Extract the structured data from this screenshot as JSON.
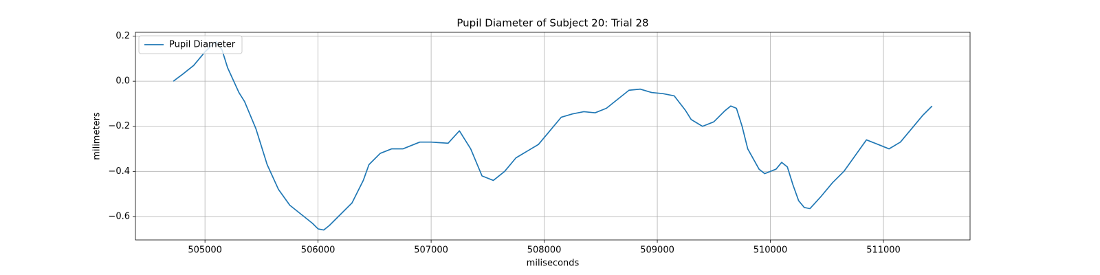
{
  "chart_data": {
    "type": "line",
    "title": "Pupil Diameter of Subject 20: Trial 28",
    "x_label": "miliseconds",
    "y_label": "milimeters",
    "x": [
      504720,
      504800,
      504900,
      505000,
      505050,
      505100,
      505150,
      505200,
      505300,
      505350,
      505450,
      505550,
      505650,
      505750,
      505850,
      505950,
      506000,
      506050,
      506100,
      506200,
      506300,
      506400,
      506450,
      506550,
      506650,
      506750,
      506850,
      506900,
      507000,
      507150,
      507250,
      507350,
      507450,
      507550,
      507650,
      507750,
      507850,
      507950,
      508050,
      508150,
      508250,
      508350,
      508450,
      508550,
      508650,
      508750,
      508850,
      508950,
      509050,
      509150,
      509250,
      509300,
      509400,
      509500,
      509600,
      509650,
      509700,
      509750,
      509800,
      509900,
      509950,
      510050,
      510100,
      510150,
      510200,
      510250,
      510300,
      510350,
      510450,
      510550,
      510650,
      510750,
      510850,
      510950,
      511050,
      511150,
      511250,
      511350,
      511430
    ],
    "series": [
      {
        "name": "Pupil Diameter",
        "color": "#1f77b4",
        "values": [
          0.0,
          0.03,
          0.07,
          0.13,
          0.155,
          0.175,
          0.14,
          0.06,
          -0.05,
          -0.09,
          -0.21,
          -0.37,
          -0.48,
          -0.55,
          -0.59,
          -0.63,
          -0.655,
          -0.66,
          -0.64,
          -0.59,
          -0.54,
          -0.44,
          -0.37,
          -0.32,
          -0.3,
          -0.3,
          -0.28,
          -0.27,
          -0.27,
          -0.275,
          -0.22,
          -0.3,
          -0.42,
          -0.44,
          -0.4,
          -0.34,
          -0.31,
          -0.28,
          -0.22,
          -0.16,
          -0.145,
          -0.135,
          -0.14,
          -0.12,
          -0.08,
          -0.04,
          -0.035,
          -0.05,
          -0.055,
          -0.065,
          -0.13,
          -0.17,
          -0.2,
          -0.18,
          -0.13,
          -0.11,
          -0.12,
          -0.2,
          -0.3,
          -0.39,
          -0.41,
          -0.39,
          -0.36,
          -0.38,
          -0.46,
          -0.53,
          -0.56,
          -0.565,
          -0.51,
          -0.45,
          -0.4,
          -0.33,
          -0.26,
          -0.28,
          -0.3,
          -0.27,
          -0.21,
          -0.15,
          -0.11
        ]
      }
    ],
    "xlim": [
      504385,
      511766
    ],
    "ylim": [
      -0.704,
      0.217
    ],
    "xticks": [
      505000,
      506000,
      507000,
      508000,
      509000,
      510000,
      511000
    ],
    "yticks": [
      {
        "value": -0.6,
        "label": "−0.6"
      },
      {
        "value": -0.4,
        "label": "−0.4"
      },
      {
        "value": -0.2,
        "label": "−0.2"
      },
      {
        "value": 0,
        "label": "0.0"
      },
      0.2
    ],
    "grid": true,
    "legend": "upper left"
  }
}
